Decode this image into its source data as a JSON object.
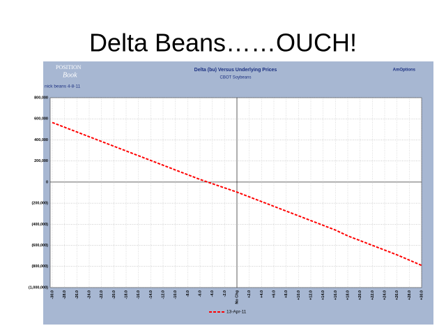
{
  "slide_title": "Delta Beans……OUCH!",
  "chart_data": {
    "type": "line",
    "title": "Delta (bu) Versus Underlying Prices",
    "subtitle": "CBOT Soybeans",
    "annotations": [
      "POSITION",
      "Book",
      "nick beans 4-8-11",
      "AmOptions"
    ],
    "categories": [
      "-30.0",
      "-28.0",
      "-26.0",
      "-24.0",
      "-22.0",
      "-20.0",
      "-18.0",
      "-16.0",
      "-14.0",
      "-12.0",
      "-10.0",
      "-8.0",
      "-6.0",
      "-4.0",
      "-2.0",
      "No Chg",
      "+2.0",
      "+4.0",
      "+6.0",
      "+8.0",
      "+10.0",
      "+12.0",
      "+14.0",
      "+16.0",
      "+18.0",
      "+20.0",
      "+22.0",
      "+24.0",
      "+26.0",
      "+28.0",
      "+30.0"
    ],
    "series": [
      {
        "name": "13-Apr-11",
        "color": "#ff0000",
        "values": [
          565000,
          520000,
          475000,
          430000,
          385000,
          340000,
          295000,
          250000,
          205000,
          160000,
          115000,
          70000,
          25000,
          -15000,
          -55000,
          -95000,
          -140000,
          -185000,
          -230000,
          -275000,
          -320000,
          -365000,
          -410000,
          -455000,
          -510000,
          -555000,
          -600000,
          -645000,
          -690000,
          -740000,
          -790000
        ]
      }
    ],
    "ylim": [
      -1000000,
      800000
    ],
    "yticks": [
      {
        "value": -1000000,
        "label": "(1,000,000)"
      },
      {
        "value": -800000,
        "label": "(800,000)"
      },
      {
        "value": -600000,
        "label": "(600,000)"
      },
      {
        "value": -400000,
        "label": "(400,000)"
      },
      {
        "value": -200000,
        "label": "(200,000)"
      },
      0,
      {
        "value": 200000,
        "label": "200,000"
      },
      {
        "value": 400000,
        "label": "400,000"
      },
      {
        "value": 600000,
        "label": "600,000"
      },
      {
        "value": 800000,
        "label": "800,000"
      }
    ],
    "grid": true,
    "legend": "bottom"
  }
}
